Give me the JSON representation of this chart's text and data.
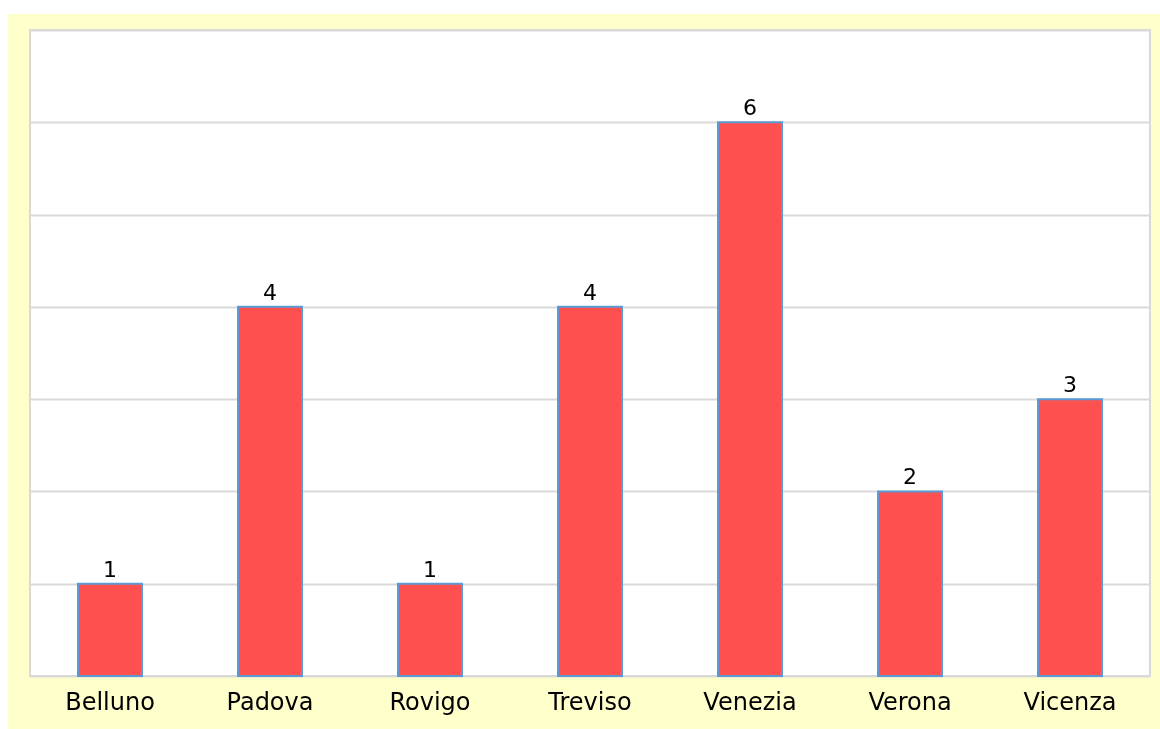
{
  "chart_data": {
    "type": "bar",
    "categories": [
      "Belluno",
      "Padova",
      "Rovigo",
      "Treviso",
      "Venezia",
      "Verona",
      "Vicenza"
    ],
    "values": [
      1,
      4,
      1,
      4,
      6,
      2,
      3
    ],
    "color": "#ff5050",
    "ylim": [
      0,
      7
    ],
    "yticks": [
      {
        "value": 0,
        "label": null
      },
      {
        "value": 1,
        "label": null
      },
      {
        "value": 2,
        "label": null
      },
      {
        "value": 3,
        "label": null
      },
      {
        "value": 4,
        "label": null
      },
      {
        "value": 5,
        "label": null
      },
      {
        "value": 6,
        "label": null
      },
      {
        "value": 7,
        "label": null
      }
    ],
    "grid": "y",
    "tick_labels": "x",
    "data_labels": true
  }
}
